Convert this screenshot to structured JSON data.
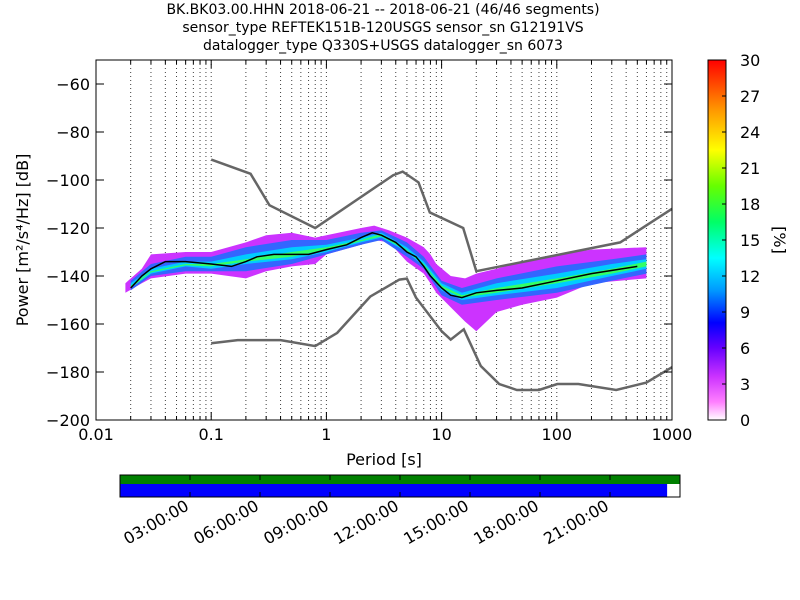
{
  "title_lines": [
    "BK.BK03.00.HHN   2018-06-21 -- 2018-06-21  (46/46 segments)",
    "sensor_type REFTEK151B-120USGS sensor_sn G12191VS",
    "datalogger_type Q330S+USGS datalogger_sn 6073"
  ],
  "chart_data": {
    "type": "heatmap",
    "xlabel": "Period [s]",
    "ylabel": "Power [m²/s⁴/Hz] [dB]",
    "xscale": "log",
    "xlim": [
      0.01,
      1000
    ],
    "ylim": [
      -200,
      -50
    ],
    "x_ticks": [
      0.01,
      0.1,
      1,
      10,
      100,
      1000
    ],
    "x_tick_labels": [
      "0.01",
      "0.1",
      "1",
      "10",
      "100",
      "1000"
    ],
    "y_ticks": [
      -200,
      -180,
      -160,
      -140,
      -120,
      -100,
      -80,
      -60
    ],
    "y_tick_labels": [
      "−200",
      "−180",
      "−160",
      "−140",
      "−120",
      "−100",
      "−80",
      "−60"
    ],
    "grid": "dotted vertical lines at log-period positions",
    "colorbar": {
      "label": "[%]",
      "range": [
        0,
        30
      ],
      "ticks": [
        0,
        3,
        6,
        9,
        12,
        15,
        18,
        21,
        24,
        27,
        30
      ],
      "colormap": "pqlx"
    },
    "noise_models": [
      {
        "points": [
          [
            0.1,
            -91.5
          ],
          [
            0.22,
            -97.4
          ],
          [
            0.32,
            -110.5
          ],
          [
            0.8,
            -120
          ],
          [
            3.8,
            -98
          ],
          [
            4.6,
            -96.5
          ],
          [
            6.3,
            -101
          ],
          [
            7.9,
            -113.5
          ],
          [
            15.4,
            -120
          ],
          [
            20,
            -138
          ],
          [
            354.8,
            -126
          ],
          [
            1000,
            -112
          ]
        ]
      },
      {
        "points": [
          [
            0.1,
            -168
          ],
          [
            0.17,
            -166.7
          ],
          [
            0.4,
            -166.7
          ],
          [
            0.8,
            -169.2
          ],
          [
            1.24,
            -163.7
          ],
          [
            2.4,
            -148.6
          ],
          [
            4.3,
            -141.5
          ],
          [
            5,
            -141.1
          ],
          [
            6,
            -149
          ],
          [
            10,
            -163
          ],
          [
            12,
            -166.5
          ],
          [
            15.6,
            -162.2
          ],
          [
            21.9,
            -177.5
          ],
          [
            31.6,
            -185
          ],
          [
            45,
            -187.5
          ],
          [
            70,
            -187.5
          ],
          [
            101,
            -185
          ],
          [
            154,
            -185
          ],
          [
            328,
            -187.5
          ],
          [
            600,
            -184.4
          ],
          [
            1000,
            -178
          ]
        ]
      }
    ],
    "mean_curve": {
      "points": [
        [
          0.02,
          -145
        ],
        [
          0.025,
          -140
        ],
        [
          0.03,
          -137
        ],
        [
          0.04,
          -134
        ],
        [
          0.06,
          -134
        ],
        [
          0.1,
          -135
        ],
        [
          0.15,
          -136
        ],
        [
          0.2,
          -134
        ],
        [
          0.25,
          -132
        ],
        [
          0.35,
          -131
        ],
        [
          0.5,
          -131
        ],
        [
          0.7,
          -131
        ],
        [
          1,
          -129
        ],
        [
          1.5,
          -127
        ],
        [
          2,
          -124
        ],
        [
          2.5,
          -122
        ],
        [
          3,
          -123
        ],
        [
          4,
          -126
        ],
        [
          5,
          -130
        ],
        [
          6,
          -132
        ],
        [
          7,
          -136
        ],
        [
          8,
          -140
        ],
        [
          10,
          -145
        ],
        [
          12,
          -148
        ],
        [
          15,
          -149
        ],
        [
          20,
          -147
        ],
        [
          30,
          -146
        ],
        [
          50,
          -145
        ],
        [
          100,
          -142
        ],
        [
          200,
          -139
        ],
        [
          500,
          -136
        ]
      ]
    },
    "psd_bands": [
      {
        "upper": [
          [
            0.018,
            -143
          ],
          [
            0.025,
            -137
          ],
          [
            0.03,
            -131
          ],
          [
            0.06,
            -130
          ],
          [
            0.1,
            -130
          ],
          [
            0.2,
            -126
          ],
          [
            0.3,
            -123
          ],
          [
            0.5,
            -122
          ],
          [
            0.8,
            -124
          ],
          [
            1,
            -123
          ],
          [
            2,
            -120
          ],
          [
            2.6,
            -119
          ],
          [
            3.5,
            -121
          ],
          [
            5,
            -124
          ],
          [
            7,
            -128
          ],
          [
            8,
            -131
          ],
          [
            9,
            -135
          ],
          [
            12,
            -140
          ],
          [
            16,
            -141
          ],
          [
            20,
            -139
          ],
          [
            30,
            -137
          ],
          [
            50,
            -134
          ],
          [
            100,
            -131
          ],
          [
            200,
            -129
          ],
          [
            600,
            -128
          ]
        ],
        "lower": [
          [
            0.018,
            -147
          ],
          [
            0.025,
            -143
          ],
          [
            0.03,
            -141
          ],
          [
            0.06,
            -139
          ],
          [
            0.1,
            -139
          ],
          [
            0.2,
            -141
          ],
          [
            0.3,
            -138
          ],
          [
            0.5,
            -136
          ],
          [
            0.8,
            -135
          ],
          [
            1,
            -131
          ],
          [
            2,
            -127
          ],
          [
            2.6,
            -125
          ],
          [
            3.5,
            -126
          ],
          [
            5,
            -134
          ],
          [
            7,
            -139
          ],
          [
            8,
            -143
          ],
          [
            9,
            -147
          ],
          [
            12,
            -153
          ],
          [
            16,
            -159
          ],
          [
            20,
            -163
          ],
          [
            30,
            -155
          ],
          [
            50,
            -152
          ],
          [
            100,
            -149
          ],
          [
            200,
            -143
          ],
          [
            600,
            -141
          ]
        ],
        "color": "#cc33ff"
      },
      {
        "upper": [
          [
            0.02,
            -142
          ],
          [
            0.03,
            -135
          ],
          [
            0.06,
            -132
          ],
          [
            0.1,
            -132
          ],
          [
            0.2,
            -128
          ],
          [
            0.5,
            -125
          ],
          [
            1,
            -125
          ],
          [
            2,
            -122
          ],
          [
            3,
            -121
          ],
          [
            5,
            -126
          ],
          [
            7,
            -132
          ],
          [
            10,
            -142
          ],
          [
            15,
            -145
          ],
          [
            30,
            -141
          ],
          [
            100,
            -136
          ],
          [
            300,
            -133
          ],
          [
            600,
            -131
          ]
        ],
        "lower": [
          [
            0.02,
            -146
          ],
          [
            0.03,
            -140
          ],
          [
            0.06,
            -138
          ],
          [
            0.1,
            -138
          ],
          [
            0.2,
            -138
          ],
          [
            0.5,
            -135
          ],
          [
            1,
            -131
          ],
          [
            2,
            -127
          ],
          [
            3,
            -125
          ],
          [
            5,
            -132
          ],
          [
            7,
            -137
          ],
          [
            10,
            -148
          ],
          [
            15,
            -152
          ],
          [
            30,
            -150
          ],
          [
            100,
            -147
          ],
          [
            300,
            -142
          ],
          [
            600,
            -139
          ]
        ],
        "color": "#3366ff"
      },
      {
        "upper": [
          [
            0.02,
            -143
          ],
          [
            0.03,
            -137
          ],
          [
            0.06,
            -134
          ],
          [
            0.1,
            -134
          ],
          [
            0.2,
            -131
          ],
          [
            0.5,
            -128
          ],
          [
            1,
            -127
          ],
          [
            2,
            -124
          ],
          [
            3,
            -122
          ],
          [
            5,
            -128
          ],
          [
            7,
            -134
          ],
          [
            10,
            -143
          ],
          [
            15,
            -147
          ],
          [
            30,
            -143
          ],
          [
            100,
            -139
          ],
          [
            300,
            -135
          ],
          [
            600,
            -133
          ]
        ],
        "lower": [
          [
            0.02,
            -145
          ],
          [
            0.03,
            -139
          ],
          [
            0.06,
            -136
          ],
          [
            0.1,
            -137
          ],
          [
            0.2,
            -135
          ],
          [
            0.5,
            -133
          ],
          [
            1,
            -130
          ],
          [
            2,
            -126
          ],
          [
            3,
            -124
          ],
          [
            5,
            -130
          ],
          [
            7,
            -136
          ],
          [
            10,
            -146
          ],
          [
            15,
            -150
          ],
          [
            30,
            -148
          ],
          [
            100,
            -145
          ],
          [
            300,
            -140
          ],
          [
            600,
            -137
          ]
        ],
        "color": "#00ccff"
      },
      {
        "upper": [
          [
            0.02,
            -144
          ],
          [
            0.03,
            -138
          ],
          [
            0.06,
            -135
          ],
          [
            0.1,
            -135
          ],
          [
            0.2,
            -133
          ],
          [
            0.5,
            -130
          ],
          [
            1,
            -128
          ],
          [
            2,
            -125
          ],
          [
            3,
            -122.5
          ],
          [
            5,
            -129
          ],
          [
            7,
            -135
          ],
          [
            10,
            -144
          ],
          [
            15,
            -148
          ],
          [
            30,
            -145
          ],
          [
            100,
            -141
          ],
          [
            300,
            -137
          ],
          [
            600,
            -134
          ]
        ],
        "lower": [
          [
            0.02,
            -145
          ],
          [
            0.03,
            -138.5
          ],
          [
            0.06,
            -135.5
          ],
          [
            0.1,
            -136
          ],
          [
            0.2,
            -134
          ],
          [
            0.5,
            -132
          ],
          [
            1,
            -129
          ],
          [
            2,
            -125.5
          ],
          [
            3,
            -123.5
          ],
          [
            5,
            -129.5
          ],
          [
            7,
            -135.5
          ],
          [
            10,
            -145
          ],
          [
            15,
            -149
          ],
          [
            30,
            -147
          ],
          [
            100,
            -143
          ],
          [
            300,
            -139
          ],
          [
            600,
            -136
          ]
        ],
        "color": "#33ff66"
      }
    ]
  },
  "timeline": {
    "tick_labels": [
      "03:00:00",
      "06:00:00",
      "09:00:00",
      "12:00:00",
      "15:00:00",
      "18:00:00",
      "21:00:00"
    ],
    "data_coverage_fraction": 0.977,
    "colors": {
      "coverage": "#008000",
      "segments": "#0000ff"
    }
  }
}
